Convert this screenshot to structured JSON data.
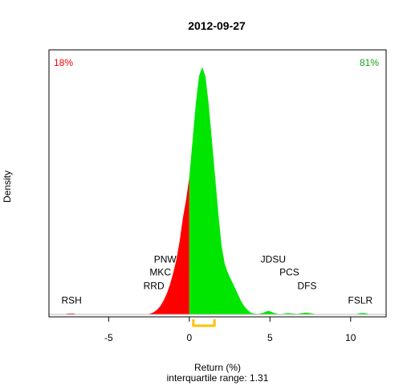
{
  "chart_data": {
    "type": "area",
    "title": "2012-09-27",
    "xlabel": "Return (%)",
    "ylabel": "Density",
    "subtitle": "interquartile range: 1.31",
    "xlim": [
      -8.7,
      12.2
    ],
    "ylim": [
      0,
      0.56
    ],
    "x_ticks": [
      -5,
      0,
      5,
      10
    ],
    "x_tick_labels": [
      "-5",
      "0",
      "5",
      "10"
    ],
    "split_at": 0,
    "negative_color": "#ff0000",
    "positive_color": "#00e600",
    "axis_line_color": "#bebebe",
    "iqr_color": "#ffc000",
    "negative_share_label": "18%",
    "positive_share_label": "81%",
    "interquartile_range": [
      0.25,
      1.56
    ],
    "density": [
      [
        -7.8,
        0
      ],
      [
        -7.5,
        0.002
      ],
      [
        -7.2,
        0.002
      ],
      [
        -6.9,
        0
      ],
      [
        -2.6,
        0
      ],
      [
        -2.4,
        0.002
      ],
      [
        -2.2,
        0.005
      ],
      [
        -2.0,
        0.01
      ],
      [
        -1.8,
        0.018
      ],
      [
        -1.6,
        0.03
      ],
      [
        -1.4,
        0.045
      ],
      [
        -1.2,
        0.065
      ],
      [
        -1.0,
        0.09
      ],
      [
        -0.8,
        0.12
      ],
      [
        -0.6,
        0.16
      ],
      [
        -0.4,
        0.21
      ],
      [
        -0.2,
        0.25
      ],
      [
        0.0,
        0.3
      ],
      [
        0.2,
        0.38
      ],
      [
        0.4,
        0.46
      ],
      [
        0.6,
        0.52
      ],
      [
        0.8,
        0.54
      ],
      [
        1.0,
        0.52
      ],
      [
        1.2,
        0.46
      ],
      [
        1.4,
        0.38
      ],
      [
        1.6,
        0.3
      ],
      [
        1.8,
        0.22
      ],
      [
        2.0,
        0.15
      ],
      [
        2.2,
        0.11
      ],
      [
        2.4,
        0.09
      ],
      [
        2.6,
        0.075
      ],
      [
        2.8,
        0.06
      ],
      [
        3.0,
        0.045
      ],
      [
        3.2,
        0.03
      ],
      [
        3.4,
        0.018
      ],
      [
        3.6,
        0.01
      ],
      [
        3.8,
        0.004
      ],
      [
        4.0,
        0.002
      ],
      [
        4.3,
        0.001
      ],
      [
        4.6,
        0.004
      ],
      [
        4.9,
        0.008
      ],
      [
        5.2,
        0.004
      ],
      [
        5.5,
        0.001
      ],
      [
        5.8,
        0.001
      ],
      [
        6.1,
        0.003
      ],
      [
        6.4,
        0.002
      ],
      [
        6.7,
        0.001
      ],
      [
        7.0,
        0.003
      ],
      [
        7.3,
        0.004
      ],
      [
        7.6,
        0.002
      ],
      [
        8.0,
        0
      ],
      [
        10.3,
        0
      ],
      [
        10.6,
        0.003
      ],
      [
        10.9,
        0.003
      ],
      [
        11.2,
        0
      ]
    ],
    "annotations": [
      {
        "text": "RSH",
        "x": -7.3,
        "y": 0.024
      },
      {
        "text": "RRD",
        "x": -2.2,
        "y": 0.055
      },
      {
        "text": "MKC",
        "x": -1.8,
        "y": 0.085
      },
      {
        "text": "PNW",
        "x": -1.5,
        "y": 0.113
      },
      {
        "text": "JDSU",
        "x": 5.2,
        "y": 0.113
      },
      {
        "text": "PCS",
        "x": 6.2,
        "y": 0.085
      },
      {
        "text": "DFS",
        "x": 7.3,
        "y": 0.055
      },
      {
        "text": "FSLR",
        "x": 10.6,
        "y": 0.024
      }
    ]
  }
}
